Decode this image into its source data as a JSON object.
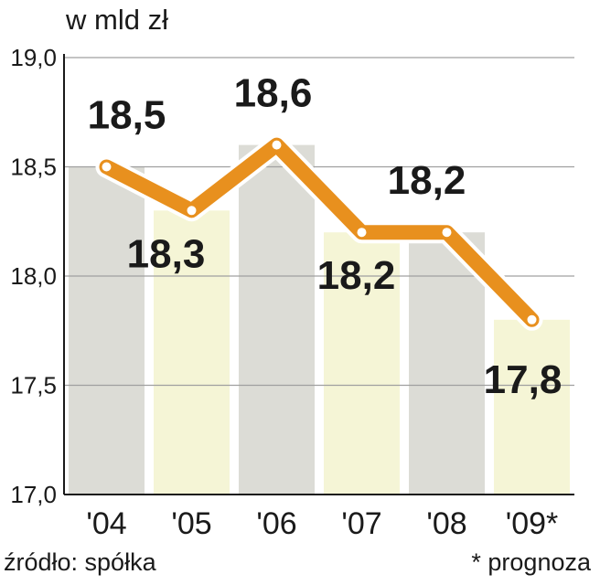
{
  "chart_data": {
    "type": "bar+line",
    "unit_label": "w mld zł",
    "categories": [
      "'04",
      "'05",
      "'06",
      "'07",
      "'08",
      "'09*"
    ],
    "values": [
      18.5,
      18.3,
      18.6,
      18.2,
      18.2,
      17.8
    ],
    "data_labels": [
      "18,5",
      "18,3",
      "18,6",
      "18,2",
      "18,2",
      "17,8"
    ],
    "y_ticks": [
      "17,0",
      "17,5",
      "18,0",
      "18,5",
      "19,0"
    ],
    "y_tick_values": [
      17.0,
      17.5,
      18.0,
      18.5,
      19.0
    ],
    "ylim": [
      17.0,
      19.0
    ],
    "grid": true,
    "source": "źródło: spółka",
    "note": "* prognoza",
    "colors": {
      "line": "#e8901e",
      "bar_gray": "#dcdcd6",
      "bar_yellow": "#f5f5d6",
      "grid": "#a0a0a0",
      "text": "#1a1a1a"
    }
  }
}
